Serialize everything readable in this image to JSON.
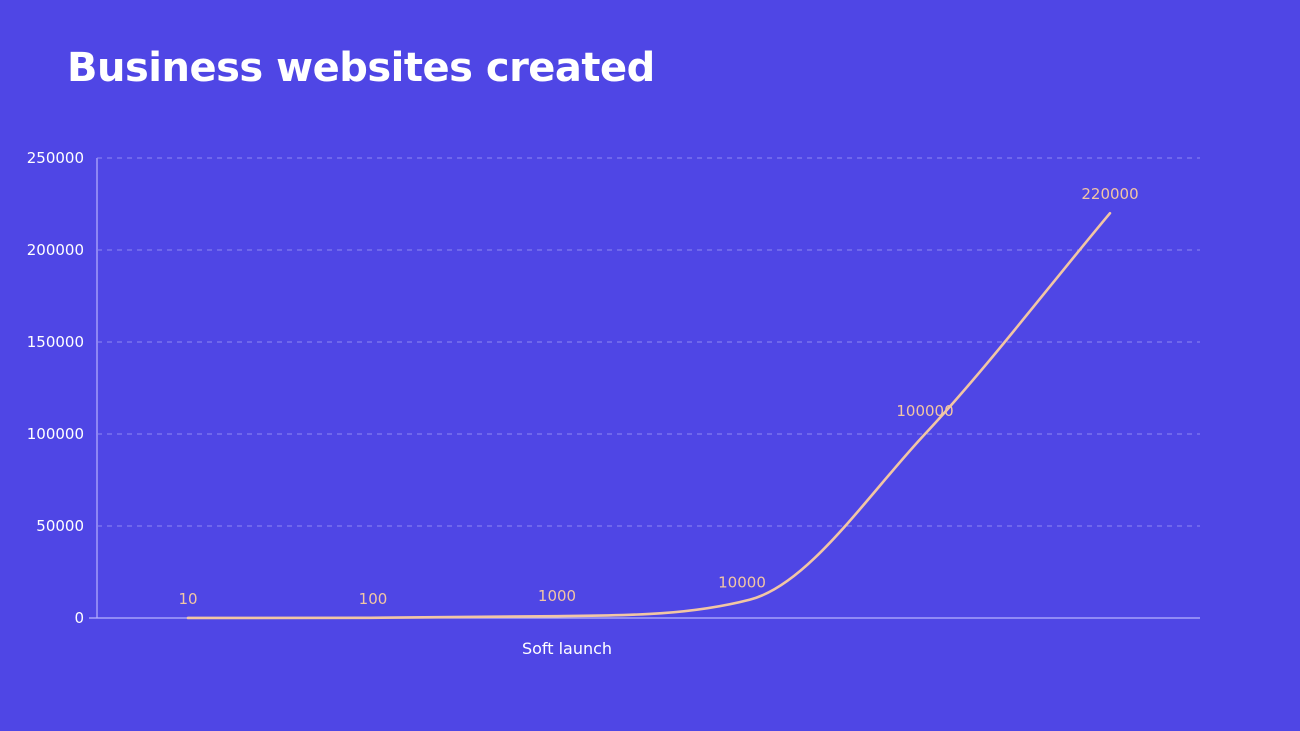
{
  "page": {
    "title": "Business websites created"
  },
  "colors": {
    "background": "#4f46e5",
    "text": "#ffffff",
    "axis": "#b8b2ff",
    "grid": "#8f88f2",
    "line": "#f2c6a4",
    "data_label": "#f2c6a4"
  },
  "chart_data": {
    "type": "line",
    "title": "Business websites created",
    "xlabel": "",
    "ylabel": "",
    "x": [
      "",
      "",
      "",
      "",
      "",
      ""
    ],
    "x_tick_labels": [
      "",
      "",
      "Soft launch",
      "",
      "",
      ""
    ],
    "ylim": [
      0,
      250000
    ],
    "y_ticks": [
      0,
      50000,
      100000,
      150000,
      200000,
      250000
    ],
    "grid": true,
    "legend": false,
    "series": [
      {
        "values": [
          10,
          100,
          1000,
          10000,
          100000,
          220000
        ],
        "data_labels": [
          "10",
          "100",
          "1000",
          "10000",
          "100000",
          "220000"
        ],
        "smooth": true
      }
    ]
  }
}
